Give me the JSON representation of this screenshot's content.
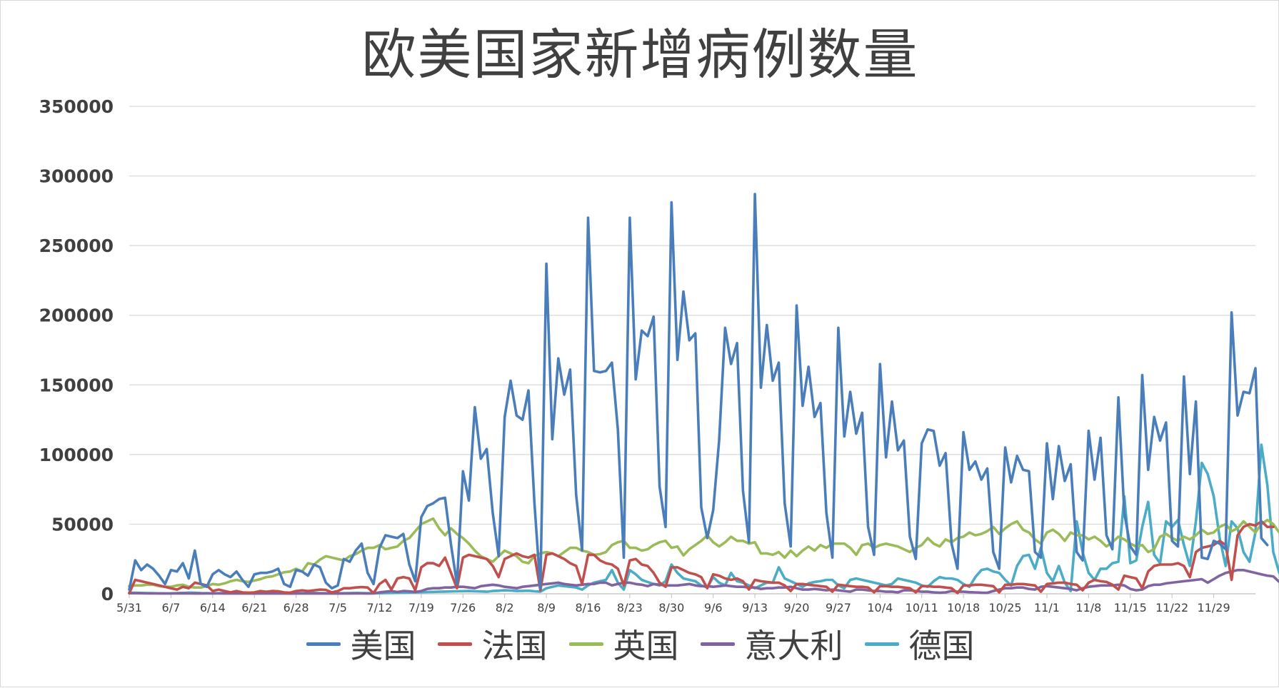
{
  "chart_data": {
    "type": "line",
    "title": "欧美国家新增病例数量",
    "xlabel": "",
    "ylabel": "",
    "ylim": [
      0,
      350000
    ],
    "yticks": [
      0,
      50000,
      100000,
      150000,
      200000,
      250000,
      300000,
      350000
    ],
    "ytick_labels": [
      "0",
      "50000",
      "100000",
      "150000",
      "200000",
      "250000",
      "300000",
      "350000"
    ],
    "grid": true,
    "legend_position": "bottom",
    "x_start": "5/31",
    "x_count": 190,
    "x_tick_labels": [
      "5/31",
      "6/7",
      "6/14",
      "6/21",
      "6/28",
      "7/5",
      "7/12",
      "7/19",
      "7/26",
      "8/2",
      "8/9",
      "8/16",
      "8/23",
      "8/30",
      "9/6",
      "9/13",
      "9/20",
      "9/27",
      "10/4",
      "10/11",
      "10/18",
      "10/25",
      "11/1",
      "11/8",
      "11/15",
      "11/22",
      "11/29"
    ],
    "x_tick_every": 7,
    "series": [
      {
        "name": "美国",
        "color": "#4a7ebb",
        "values": [
          3000,
          24000,
          17000,
          21000,
          18000,
          13000,
          7000,
          17000,
          16000,
          22000,
          11000,
          31000,
          7000,
          5000,
          14000,
          17000,
          14000,
          12000,
          16000,
          10000,
          5000,
          14000,
          15000,
          15000,
          16000,
          18000,
          7000,
          5000,
          17000,
          16000,
          13000,
          21000,
          19000,
          8000,
          4000,
          6000,
          25000,
          23000,
          31000,
          36000,
          15000,
          7000,
          33000,
          42000,
          41000,
          40000,
          43000,
          21000,
          9000,
          55000,
          63000,
          65000,
          68000,
          69000,
          35000,
          7000,
          88000,
          67000,
          134000,
          97000,
          104000,
          58000,
          27000,
          127000,
          153000,
          128000,
          125000,
          146000,
          65000,
          4000,
          237000,
          111000,
          169000,
          143000,
          161000,
          71000,
          31000,
          270000,
          160000,
          159000,
          160000,
          166000,
          118000,
          26000,
          270000,
          154000,
          189000,
          185000,
          199000,
          77000,
          48000,
          281000,
          168000,
          217000,
          182000,
          187000,
          62000,
          40000,
          60000,
          110000,
          191000,
          165000,
          180000,
          74000,
          37000,
          287000,
          148000,
          193000,
          153000,
          166000,
          65000,
          34000,
          207000,
          135000,
          163000,
          127000,
          137000,
          58000,
          26000,
          191000,
          113000,
          145000,
          115000,
          130000,
          48000,
          28000,
          165000,
          98000,
          138000,
          103000,
          110000,
          41000,
          25000,
          108000,
          118000,
          117000,
          92000,
          101000,
          36000,
          18000,
          116000,
          89000,
          95000,
          82000,
          90000,
          30000,
          18000,
          105000,
          80000,
          99000,
          89000,
          88000,
          30000,
          26000,
          108000,
          68000,
          106000,
          81000,
          93000,
          30000,
          24000,
          117000,
          82000,
          112000,
          42000,
          32000,
          141000,
          58000,
          34000,
          28000,
          157000,
          89000,
          127000,
          110000,
          123000,
          38000,
          34000,
          156000,
          86000,
          138000,
          26000,
          25000,
          38000,
          36000,
          32000,
          202000,
          128000,
          145000,
          144000,
          162000,
          40000,
          35000
        ]
      },
      {
        "name": "法国",
        "color": "#c0504d",
        "values": [
          500,
          10000,
          9000,
          8000,
          7000,
          6000,
          5000,
          4000,
          3000,
          5000,
          4000,
          8000,
          7000,
          6000,
          2000,
          3000,
          2000,
          1000,
          2000,
          1000,
          800,
          1000,
          2000,
          1500,
          2000,
          1800,
          1000,
          800,
          2000,
          2500,
          2000,
          2500,
          3000,
          2800,
          1000,
          2000,
          4000,
          4000,
          4500,
          4800,
          4500,
          500,
          7000,
          10000,
          3000,
          11000,
          12000,
          11000,
          2500,
          19000,
          22000,
          22000,
          20000,
          26000,
          15000,
          4000,
          26000,
          28000,
          27000,
          26000,
          25000,
          20000,
          12000,
          25000,
          27000,
          29000,
          27000,
          26000,
          28000,
          2500,
          28000,
          29000,
          27000,
          25000,
          22000,
          20000,
          7000,
          28000,
          28000,
          24000,
          22000,
          21000,
          18000,
          6000,
          24000,
          25000,
          21000,
          20000,
          15000,
          8000,
          5000,
          19000,
          19000,
          17000,
          15000,
          14000,
          12000,
          4000,
          14000,
          13000,
          11000,
          10000,
          11000,
          9000,
          3000,
          10000,
          9000,
          8500,
          8000,
          8000,
          6000,
          2000,
          7000,
          7000,
          6500,
          6000,
          5500,
          5000,
          1500,
          6500,
          6000,
          5500,
          5000,
          5000,
          4500,
          1000,
          5500,
          5500,
          5000,
          5000,
          4500,
          4000,
          1000,
          5500,
          5500,
          5000,
          5000,
          4500,
          4000,
          500,
          6000,
          6000,
          6500,
          6500,
          6000,
          5500,
          1000,
          6500,
          6500,
          7000,
          7000,
          6500,
          6000,
          1500,
          7000,
          7500,
          8000,
          8000,
          7000,
          6500,
          2500,
          8000,
          10000,
          9000,
          8500,
          6500,
          3000,
          13000,
          12000,
          11000,
          4000,
          16000,
          20000,
          21000,
          21000,
          21000,
          22000,
          20000,
          12000,
          30000,
          33000,
          34000,
          35000,
          38000,
          35000,
          10000,
          42000,
          48000,
          50000,
          49000,
          52000,
          48000,
          48000
        ]
      },
      {
        "name": "英国",
        "color": "#9bbb59",
        "values": [
          5500,
          6000,
          6000,
          6500,
          6500,
          5500,
          5000,
          5000,
          6000,
          6500,
          5000,
          4500,
          4500,
          5500,
          7000,
          6500,
          7500,
          9000,
          10000,
          9000,
          8500,
          9500,
          10500,
          12000,
          12500,
          14000,
          15500,
          16000,
          18000,
          16000,
          22000,
          21000,
          24500,
          27000,
          26000,
          25000,
          24000,
          27000,
          28500,
          31000,
          33000,
          33000,
          35000,
          32000,
          33000,
          34000,
          38000,
          40000,
          45000,
          50000,
          52000,
          54000,
          47000,
          42000,
          47000,
          43000,
          40000,
          36000,
          31000,
          27000,
          25000,
          23000,
          27000,
          31000,
          29000,
          27000,
          23000,
          22000,
          27000,
          29000,
          30000,
          29000,
          27000,
          30000,
          33000,
          33000,
          31000,
          30000,
          28000,
          28500,
          30000,
          35000,
          37000,
          38000,
          33000,
          33000,
          31000,
          32000,
          35000,
          37000,
          38000,
          33000,
          34000,
          27500,
          32000,
          35000,
          38000,
          42000,
          37000,
          34000,
          37000,
          41000,
          38000,
          38000,
          36000,
          37000,
          29000,
          29000,
          28000,
          30000,
          26000,
          31000,
          27000,
          31000,
          34000,
          31000,
          35000,
          33000,
          36000,
          36000,
          36000,
          33000,
          28000,
          35000,
          36000,
          33000,
          35000,
          36000,
          35000,
          34000,
          32000,
          30000,
          33000,
          35000,
          40000,
          36000,
          34000,
          39000,
          37000,
          40000,
          41000,
          44000,
          42000,
          43000,
          45000,
          48000,
          43000,
          47000,
          50000,
          52000,
          46000,
          44000,
          39000,
          36000,
          44000,
          46000,
          43000,
          38000,
          44000,
          42000,
          42000,
          39000,
          41000,
          38000,
          34000,
          37000,
          41000,
          39000,
          36000,
          34000,
          35000,
          30000,
          32000,
          41000,
          43000,
          40000,
          38000,
          41000,
          39000,
          42000,
          46000,
          43000,
          44000,
          48000,
          50000,
          45000,
          47000,
          52000,
          48000,
          44000,
          50000,
          53000,
          50000,
          44000,
          41000
        ]
      },
      {
        "name": "意大利",
        "color": "#8064a2",
        "values": [
          400,
          400,
          350,
          300,
          300,
          280,
          250,
          250,
          300,
          300,
          250,
          200,
          200,
          300,
          250,
          250,
          200,
          200,
          250,
          200,
          200,
          200,
          220,
          200,
          220,
          250,
          200,
          150,
          200,
          230,
          220,
          250,
          230,
          200,
          180,
          200,
          200,
          230,
          250,
          300,
          200,
          250,
          1000,
          1500,
          2000,
          1300,
          2000,
          1800,
          1300,
          2000,
          3500,
          4000,
          4000,
          4500,
          4500,
          5000,
          5000,
          4500,
          4000,
          5500,
          6000,
          6500,
          6000,
          5000,
          4500,
          4000,
          5000,
          5500,
          6000,
          6500,
          7000,
          7500,
          8000,
          7000,
          6500,
          6000,
          6500,
          7000,
          7000,
          8000,
          8000,
          6000,
          7000,
          8000,
          8000,
          7000,
          6500,
          5500,
          7000,
          6500,
          6000,
          6000,
          6000,
          6500,
          7000,
          6000,
          5500,
          5500,
          5000,
          5500,
          6000,
          5500,
          5000,
          5000,
          4500,
          4500,
          3500,
          4000,
          4000,
          4500,
          4500,
          5000,
          4000,
          3000,
          3000,
          3500,
          3000,
          2500,
          3000,
          2500,
          2000,
          1500,
          3000,
          3000,
          2500,
          2000,
          2000,
          1500,
          1500,
          1000,
          2500,
          2500,
          2000,
          1500,
          1500,
          1000,
          800,
          1000,
          2000,
          1500,
          1500,
          1200,
          1000,
          800,
          700,
          2000,
          3000,
          4000,
          4000,
          4500,
          4500,
          3500,
          3000,
          5000,
          5500,
          5000,
          4500,
          4000,
          3500,
          2500,
          4000,
          5000,
          5500,
          6000,
          6000,
          6000,
          6500,
          6000,
          3500,
          2500,
          3000,
          5500,
          6500,
          6500,
          7500,
          8000,
          8500,
          9000,
          9500,
          10000,
          10500,
          8000,
          10500,
          13000,
          15000,
          16000,
          17000,
          17000,
          16000,
          15000,
          14000,
          13000,
          12500,
          8500,
          13000,
          15000,
          16000
        ]
      },
      {
        "name": "德国",
        "color": "#4bacc6",
        "values": [
          700,
          700,
          600,
          500,
          400,
          300,
          250,
          300,
          500,
          600,
          800,
          700,
          500,
          400,
          300,
          400,
          500,
          500,
          600,
          700,
          400,
          300,
          400,
          500,
          600,
          500,
          400,
          300,
          400,
          500,
          500,
          600,
          500,
          400,
          300,
          350,
          400,
          500,
          600,
          500,
          400,
          350,
          400,
          500,
          600,
          700,
          800,
          900,
          1000,
          1200,
          1300,
          1400,
          1500,
          1600,
          1700,
          1800,
          1900,
          2000,
          1800,
          1700,
          1500,
          2000,
          2200,
          2500,
          2300,
          2000,
          2100,
          2200,
          1800,
          1500,
          4000,
          5000,
          6000,
          5500,
          5000,
          4500,
          3000,
          6000,
          8000,
          9000,
          10000,
          17000,
          8000,
          3000,
          17000,
          14000,
          10000,
          8500,
          7000,
          6000,
          9000,
          21000,
          15000,
          11000,
          10000,
          9000,
          6000,
          4500,
          12000,
          8000,
          6000,
          15000,
          9000,
          8000,
          6000,
          4000,
          6000,
          8000,
          8000,
          19000,
          11000,
          9000,
          7000,
          5000,
          7500,
          8500,
          9000,
          10000,
          10000,
          6000,
          4000,
          10000,
          11000,
          10000,
          9000,
          8000,
          7000,
          6000,
          7000,
          11000,
          10000,
          9000,
          8000,
          6000,
          5000,
          9000,
          12000,
          11000,
          11000,
          10000,
          7000,
          5000,
          12000,
          17000,
          18000,
          16000,
          15000,
          10000,
          6000,
          20000,
          27000,
          28000,
          18000,
          33000,
          15000,
          9000,
          20000,
          8000,
          2000,
          52000,
          30000,
          15000,
          10000,
          18000,
          18000,
          22000,
          23000,
          70000,
          22000,
          24000,
          48000,
          66000,
          28000,
          22000,
          52000,
          48000,
          53000,
          35000,
          20000,
          52000,
          94000,
          86000,
          70000,
          40000,
          20000,
          52000,
          47000,
          30000,
          23000,
          44000,
          107000,
          78000,
          30000,
          15000,
          50000
        ]
      }
    ]
  }
}
